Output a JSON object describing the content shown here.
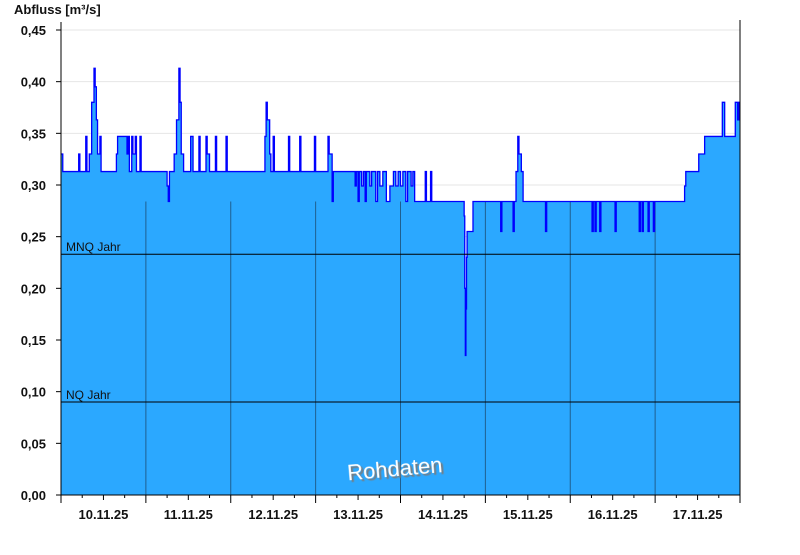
{
  "chart_data": {
    "type": "area",
    "ylabel": "Abfluss [m³/s]",
    "xlabel": "",
    "ylim": [
      0,
      0.45
    ],
    "y_ticks": [
      "0,00",
      "0,05",
      "0,10",
      "0,15",
      "0,20",
      "0,25",
      "0,30",
      "0,35",
      "0,40",
      "0,45"
    ],
    "x_range": [
      "2025-11-10T00:00",
      "2025-11-18T00:00"
    ],
    "x_tick_labels": [
      "10.11.25",
      "11.11.25",
      "12.11.25",
      "13.11.25",
      "14.11.25",
      "15.11.25",
      "16.11.25",
      "17.11.25"
    ],
    "grid": "horizontal",
    "step": true,
    "colors": {
      "fill": "#2ba8ff",
      "line": "#0000ff",
      "day_lines": "#1f5f8f",
      "reference": "#000000",
      "grid": "#e6e6e6"
    },
    "reference_lines": [
      {
        "label": "MNQ Jahr",
        "value": 0.233
      },
      {
        "label": "NQ Jahr",
        "value": 0.09
      }
    ],
    "watermark": "Rohdaten",
    "series": [
      {
        "points": [
          [
            "2025-11-10T00:00",
            0.33
          ],
          [
            "2025-11-10T00:30",
            0.313
          ],
          [
            "2025-11-10T05:00",
            0.33
          ],
          [
            "2025-11-10T05:20",
            0.313
          ],
          [
            "2025-11-10T07:00",
            0.347
          ],
          [
            "2025-11-10T07:20",
            0.313
          ],
          [
            "2025-11-10T08:00",
            0.33
          ],
          [
            "2025-11-10T08:40",
            0.38
          ],
          [
            "2025-11-10T09:20",
            0.413
          ],
          [
            "2025-11-10T09:40",
            0.395
          ],
          [
            "2025-11-10T10:00",
            0.363
          ],
          [
            "2025-11-10T10:20",
            0.33
          ],
          [
            "2025-11-10T11:00",
            0.347
          ],
          [
            "2025-11-10T11:20",
            0.313
          ],
          [
            "2025-11-10T15:40",
            0.33
          ],
          [
            "2025-11-10T16:00",
            0.347
          ],
          [
            "2025-11-10T18:40",
            0.33
          ],
          [
            "2025-11-10T19:00",
            0.347
          ],
          [
            "2025-11-10T19:20",
            0.313
          ],
          [
            "2025-11-10T20:00",
            0.347
          ],
          [
            "2025-11-10T20:20",
            0.33
          ],
          [
            "2025-11-10T21:00",
            0.347
          ],
          [
            "2025-11-10T21:20",
            0.313
          ],
          [
            "2025-11-10T22:20",
            0.347
          ],
          [
            "2025-11-10T22:40",
            0.313
          ],
          [
            "2025-11-11T06:00",
            0.299
          ],
          [
            "2025-11-11T06:20",
            0.284
          ],
          [
            "2025-11-11T06:40",
            0.313
          ],
          [
            "2025-11-11T08:00",
            0.33
          ],
          [
            "2025-11-11T08:40",
            0.363
          ],
          [
            "2025-11-11T09:20",
            0.413
          ],
          [
            "2025-11-11T09:40",
            0.38
          ],
          [
            "2025-11-11T10:00",
            0.33
          ],
          [
            "2025-11-11T10:40",
            0.313
          ],
          [
            "2025-11-11T12:40",
            0.347
          ],
          [
            "2025-11-11T13:20",
            0.313
          ],
          [
            "2025-11-11T15:00",
            0.347
          ],
          [
            "2025-11-11T15:20",
            0.313
          ],
          [
            "2025-11-11T17:00",
            0.347
          ],
          [
            "2025-11-11T17:20",
            0.33
          ],
          [
            "2025-11-11T18:00",
            0.313
          ],
          [
            "2025-11-11T19:40",
            0.347
          ],
          [
            "2025-11-11T20:00",
            0.313
          ],
          [
            "2025-11-11T22:40",
            0.347
          ],
          [
            "2025-11-11T23:00",
            0.313
          ],
          [
            "2025-11-12T09:40",
            0.347
          ],
          [
            "2025-11-12T10:00",
            0.38
          ],
          [
            "2025-11-12T10:20",
            0.363
          ],
          [
            "2025-11-12T11:00",
            0.33
          ],
          [
            "2025-11-12T11:20",
            0.313
          ],
          [
            "2025-11-12T12:00",
            0.347
          ],
          [
            "2025-11-12T12:20",
            0.313
          ],
          [
            "2025-11-12T16:20",
            0.347
          ],
          [
            "2025-11-12T16:40",
            0.313
          ],
          [
            "2025-11-12T19:30",
            0.347
          ],
          [
            "2025-11-12T19:50",
            0.313
          ],
          [
            "2025-11-12T23:40",
            0.347
          ],
          [
            "2025-11-13T00:00",
            0.313
          ],
          [
            "2025-11-13T03:30",
            0.347
          ],
          [
            "2025-11-13T03:50",
            0.33
          ],
          [
            "2025-11-13T04:40",
            0.284
          ],
          [
            "2025-11-13T05:00",
            0.313
          ],
          [
            "2025-11-13T11:10",
            0.299
          ],
          [
            "2025-11-13T11:30",
            0.313
          ],
          [
            "2025-11-13T12:00",
            0.284
          ],
          [
            "2025-11-13T12:20",
            0.313
          ],
          [
            "2025-11-13T13:00",
            0.299
          ],
          [
            "2025-11-13T13:30",
            0.313
          ],
          [
            "2025-11-13T14:00",
            0.284
          ],
          [
            "2025-11-13T14:20",
            0.313
          ],
          [
            "2025-11-13T15:20",
            0.299
          ],
          [
            "2025-11-13T15:50",
            0.313
          ],
          [
            "2025-11-13T17:00",
            0.284
          ],
          [
            "2025-11-13T17:30",
            0.313
          ],
          [
            "2025-11-13T18:10",
            0.299
          ],
          [
            "2025-11-13T19:00",
            0.313
          ],
          [
            "2025-11-13T20:00",
            0.284
          ],
          [
            "2025-11-13T21:00",
            0.299
          ],
          [
            "2025-11-13T22:00",
            0.313
          ],
          [
            "2025-11-13T22:40",
            0.299
          ],
          [
            "2025-11-13T23:20",
            0.313
          ],
          [
            "2025-11-14T00:00",
            0.299
          ],
          [
            "2025-11-14T00:40",
            0.313
          ],
          [
            "2025-11-14T01:30",
            0.284
          ],
          [
            "2025-11-14T02:00",
            0.313
          ],
          [
            "2025-11-14T03:00",
            0.299
          ],
          [
            "2025-11-14T03:30",
            0.313
          ],
          [
            "2025-11-14T04:00",
            0.284
          ],
          [
            "2025-11-14T07:00",
            0.313
          ],
          [
            "2025-11-14T07:20",
            0.284
          ],
          [
            "2025-11-14T08:30",
            0.313
          ],
          [
            "2025-11-14T08:50",
            0.284
          ],
          [
            "2025-11-14T18:00",
            0.27
          ],
          [
            "2025-11-14T18:10",
            0.2
          ],
          [
            "2025-11-14T18:20",
            0.135
          ],
          [
            "2025-11-14T18:30",
            0.18
          ],
          [
            "2025-11-14T18:40",
            0.23
          ],
          [
            "2025-11-14T18:50",
            0.255
          ],
          [
            "2025-11-14T20:30",
            0.284
          ],
          [
            "2025-11-15T04:20",
            0.255
          ],
          [
            "2025-11-15T04:40",
            0.284
          ],
          [
            "2025-11-15T07:50",
            0.255
          ],
          [
            "2025-11-15T08:10",
            0.284
          ],
          [
            "2025-11-15T08:40",
            0.313
          ],
          [
            "2025-11-15T09:10",
            0.347
          ],
          [
            "2025-11-15T09:30",
            0.33
          ],
          [
            "2025-11-15T10:10",
            0.313
          ],
          [
            "2025-11-15T10:40",
            0.284
          ],
          [
            "2025-11-15T17:00",
            0.255
          ],
          [
            "2025-11-15T17:20",
            0.284
          ],
          [
            "2025-11-16T06:10",
            0.255
          ],
          [
            "2025-11-16T06:30",
            0.284
          ],
          [
            "2025-11-16T07:00",
            0.255
          ],
          [
            "2025-11-16T07:20",
            0.284
          ],
          [
            "2025-11-16T08:20",
            0.255
          ],
          [
            "2025-11-16T08:40",
            0.284
          ],
          [
            "2025-11-16T12:40",
            0.255
          ],
          [
            "2025-11-16T13:00",
            0.284
          ],
          [
            "2025-11-16T19:30",
            0.255
          ],
          [
            "2025-11-16T19:50",
            0.284
          ],
          [
            "2025-11-16T20:20",
            0.255
          ],
          [
            "2025-11-16T20:40",
            0.284
          ],
          [
            "2025-11-16T22:00",
            0.255
          ],
          [
            "2025-11-16T22:20",
            0.284
          ],
          [
            "2025-11-16T23:30",
            0.255
          ],
          [
            "2025-11-16T23:50",
            0.284
          ],
          [
            "2025-11-17T08:20",
            0.299
          ],
          [
            "2025-11-17T08:40",
            0.313
          ],
          [
            "2025-11-17T12:20",
            0.33
          ],
          [
            "2025-11-17T14:00",
            0.347
          ],
          [
            "2025-11-17T19:00",
            0.38
          ],
          [
            "2025-11-17T19:40",
            0.347
          ],
          [
            "2025-11-17T21:00",
            0.347
          ],
          [
            "2025-11-17T22:40",
            0.38
          ],
          [
            "2025-11-17T23:20",
            0.363
          ],
          [
            "2025-11-17T23:40",
            0.38
          ],
          [
            "2025-11-18T00:00",
            0.38
          ]
        ]
      }
    ]
  }
}
